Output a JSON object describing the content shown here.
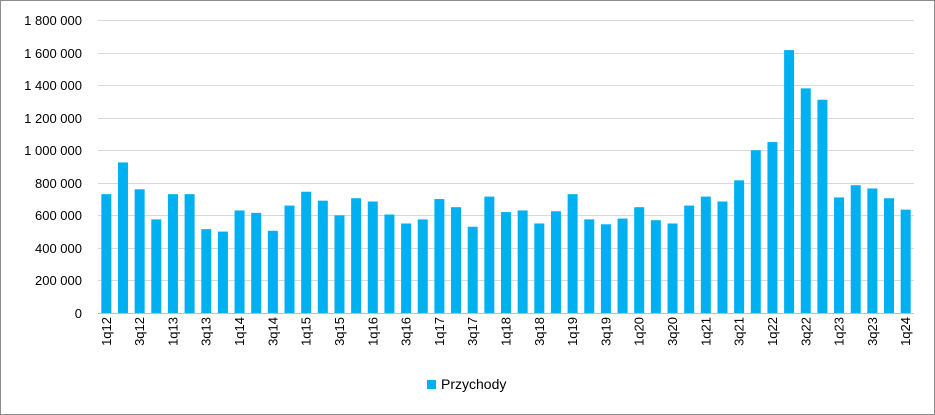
{
  "chart_data": {
    "type": "bar",
    "series": [
      {
        "name": "Przychody",
        "color": "#00B0F0",
        "values": [
          730000,
          925000,
          760000,
          575000,
          730000,
          730000,
          515000,
          500000,
          630000,
          615000,
          505000,
          660000,
          745000,
          690000,
          600000,
          705000,
          685000,
          605000,
          550000,
          575000,
          700000,
          650000,
          530000,
          715000,
          620000,
          630000,
          550000,
          625000,
          730000,
          575000,
          545000,
          580000,
          650000,
          570000,
          550000,
          660000,
          715000,
          685000,
          815000,
          1000000,
          1050000,
          1615000,
          1380000,
          1310000,
          710000,
          785000,
          765000,
          705000,
          635000
        ]
      }
    ],
    "tick_labels": [
      "1q12",
      "3q12",
      "1q13",
      "3q13",
      "1q14",
      "3q14",
      "1q15",
      "3q15",
      "1q16",
      "3q16",
      "1q17",
      "3q17",
      "1q18",
      "3q18",
      "1q19",
      "3q19",
      "1q20",
      "3q20",
      "1q21",
      "3q21",
      "1q22",
      "3q22",
      "1q23",
      "3q23",
      "1q24"
    ],
    "y_tick_labels": [
      "0",
      "200 000",
      "400 000",
      "600 000",
      "800 000",
      "1 000 000",
      "1 200 000",
      "1 400 000",
      "1 600 000",
      "1 800 000"
    ],
    "ylim": [
      0,
      1800000
    ],
    "y_step": 200000,
    "grid": true,
    "legend_position": "bottom",
    "colors": {
      "bar": "#00B0F0",
      "grid": "#d9d9d9",
      "axis": "#bfbfbf"
    }
  }
}
